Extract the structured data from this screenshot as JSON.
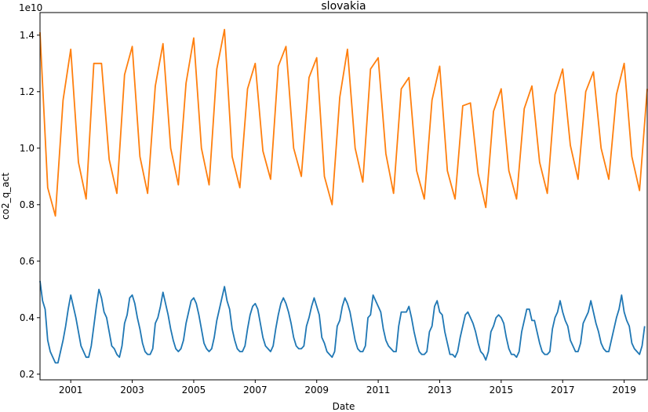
{
  "chart_data": {
    "type": "line",
    "title": "slovakia",
    "xlabel": "Date",
    "ylabel": "co2_q_act",
    "y_offset_text": "1e10",
    "x_range": [
      2000.0,
      2019.75
    ],
    "ylim": [
      0.18,
      1.48
    ],
    "x_ticks": [
      2001,
      2003,
      2005,
      2007,
      2009,
      2011,
      2013,
      2015,
      2017,
      2019
    ],
    "x_tick_labels": [
      "2001",
      "2003",
      "2005",
      "2007",
      "2009",
      "2011",
      "2013",
      "2015",
      "2017",
      "2019"
    ],
    "y_ticks": [
      0.2,
      0.4,
      0.6,
      0.8,
      1.0,
      1.2,
      1.4
    ],
    "y_tick_labels": [
      "0.2",
      "0.4",
      "0.6",
      "0.8",
      "1.0",
      "1.2",
      "1.4"
    ],
    "grid": false,
    "legend": "none",
    "series": [
      {
        "color": "#ff7f0e",
        "frequency": "quarterly",
        "start": 2000.0,
        "step": 0.25,
        "values": [
          1.41,
          0.86,
          0.76,
          1.17,
          1.35,
          0.95,
          0.82,
          1.3,
          1.3,
          0.96,
          0.84,
          1.26,
          1.36,
          0.97,
          0.84,
          1.22,
          1.37,
          1.0,
          0.87,
          1.23,
          1.39,
          1.0,
          0.87,
          1.28,
          1.42,
          0.97,
          0.86,
          1.21,
          1.3,
          0.99,
          0.89,
          1.29,
          1.36,
          1.0,
          0.9,
          1.25,
          1.32,
          0.9,
          0.8,
          1.18,
          1.35,
          1.0,
          0.88,
          1.28,
          1.32,
          0.98,
          0.84,
          1.21,
          1.25,
          0.92,
          0.82,
          1.17,
          1.29,
          0.92,
          0.82,
          1.15,
          1.16,
          0.91,
          0.79,
          1.13,
          1.21,
          0.92,
          0.82,
          1.14,
          1.22,
          0.95,
          0.84,
          1.19,
          1.28,
          1.01,
          0.89,
          1.2,
          1.27,
          1.0,
          0.89,
          1.19,
          1.3,
          0.97,
          0.85,
          1.21
        ]
      },
      {
        "color": "#1f77b4",
        "frequency": "monthly",
        "start": 2000.0,
        "step": 0.0833333,
        "values": [
          0.53,
          0.46,
          0.43,
          0.32,
          0.28,
          0.26,
          0.24,
          0.24,
          0.28,
          0.32,
          0.37,
          0.43,
          0.48,
          0.44,
          0.4,
          0.35,
          0.3,
          0.28,
          0.26,
          0.26,
          0.3,
          0.37,
          0.44,
          0.5,
          0.47,
          0.42,
          0.4,
          0.35,
          0.3,
          0.29,
          0.27,
          0.26,
          0.3,
          0.38,
          0.41,
          0.47,
          0.48,
          0.45,
          0.4,
          0.36,
          0.31,
          0.28,
          0.27,
          0.27,
          0.29,
          0.38,
          0.4,
          0.44,
          0.49,
          0.45,
          0.41,
          0.36,
          0.32,
          0.29,
          0.28,
          0.29,
          0.32,
          0.38,
          0.42,
          0.46,
          0.47,
          0.45,
          0.41,
          0.36,
          0.31,
          0.29,
          0.28,
          0.29,
          0.33,
          0.39,
          0.43,
          0.47,
          0.51,
          0.46,
          0.43,
          0.36,
          0.32,
          0.29,
          0.28,
          0.28,
          0.3,
          0.36,
          0.41,
          0.44,
          0.45,
          0.43,
          0.38,
          0.33,
          0.3,
          0.29,
          0.28,
          0.3,
          0.36,
          0.41,
          0.45,
          0.47,
          0.45,
          0.42,
          0.38,
          0.33,
          0.3,
          0.29,
          0.29,
          0.3,
          0.37,
          0.4,
          0.44,
          0.47,
          0.44,
          0.41,
          0.33,
          0.31,
          0.28,
          0.27,
          0.26,
          0.28,
          0.37,
          0.39,
          0.44,
          0.47,
          0.45,
          0.42,
          0.37,
          0.32,
          0.29,
          0.28,
          0.28,
          0.3,
          0.4,
          0.41,
          0.48,
          0.46,
          0.44,
          0.42,
          0.36,
          0.32,
          0.3,
          0.29,
          0.28,
          0.28,
          0.37,
          0.42,
          0.42,
          0.42,
          0.44,
          0.4,
          0.35,
          0.31,
          0.28,
          0.27,
          0.27,
          0.28,
          0.35,
          0.37,
          0.44,
          0.46,
          0.42,
          0.41,
          0.35,
          0.31,
          0.27,
          0.27,
          0.26,
          0.28,
          0.33,
          0.37,
          0.41,
          0.42,
          0.4,
          0.38,
          0.35,
          0.31,
          0.28,
          0.27,
          0.25,
          0.28,
          0.35,
          0.37,
          0.4,
          0.41,
          0.4,
          0.38,
          0.33,
          0.29,
          0.27,
          0.27,
          0.26,
          0.28,
          0.35,
          0.39,
          0.43,
          0.43,
          0.39,
          0.39,
          0.35,
          0.31,
          0.28,
          0.27,
          0.27,
          0.28,
          0.36,
          0.4,
          0.42,
          0.46,
          0.42,
          0.39,
          0.37,
          0.32,
          0.3,
          0.28,
          0.28,
          0.31,
          0.38,
          0.4,
          0.42,
          0.46,
          0.42,
          0.38,
          0.35,
          0.31,
          0.29,
          0.28,
          0.28,
          0.32,
          0.36,
          0.4,
          0.43,
          0.48,
          0.42,
          0.39,
          0.37,
          0.31,
          0.29,
          0.28,
          0.27,
          0.3,
          0.37
        ]
      }
    ]
  }
}
